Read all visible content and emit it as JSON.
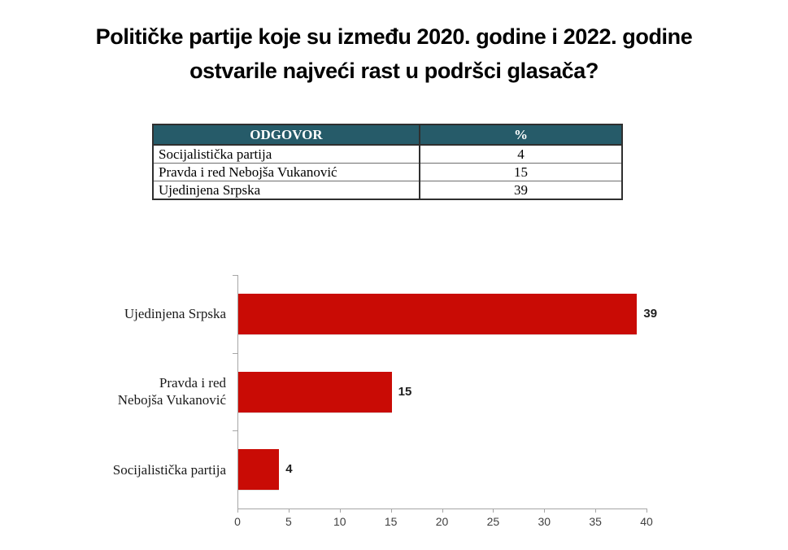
{
  "page": {
    "title_line1": "Političke partije koje su između 2020. godine i 2022. godine",
    "title_line2": "ostvarile najveći rast u podršci glasača?"
  },
  "table": {
    "headers": [
      "ODGOVOR",
      "%"
    ],
    "rows": [
      {
        "answer": "Socijalistička partija",
        "percent": "4"
      },
      {
        "answer": "Pravda i red Nebojša Vukanović",
        "percent": "15"
      },
      {
        "answer": "Ujedinjena Srpska",
        "percent": "39"
      }
    ],
    "header_bg": "#265b69",
    "header_text_color": "#ffffff"
  },
  "chart_data": {
    "type": "bar",
    "orientation": "horizontal",
    "categories": [
      "Ujedinjena Srpska",
      "Pravda i red\nNebojša Vukanović",
      "Socijalistička partija"
    ],
    "values": [
      39,
      15,
      4
    ],
    "value_labels": [
      "39",
      "15",
      "4"
    ],
    "title": "",
    "xlabel": "",
    "ylabel": "",
    "xlim": [
      0,
      40
    ],
    "xticks": [
      "0",
      "5",
      "10",
      "15",
      "20",
      "25",
      "30",
      "35",
      "40"
    ],
    "grid": false,
    "legend": false,
    "bar_color": "#c90b05",
    "axis_color": "#a6a6a6",
    "tick_label_color": "#404040"
  }
}
